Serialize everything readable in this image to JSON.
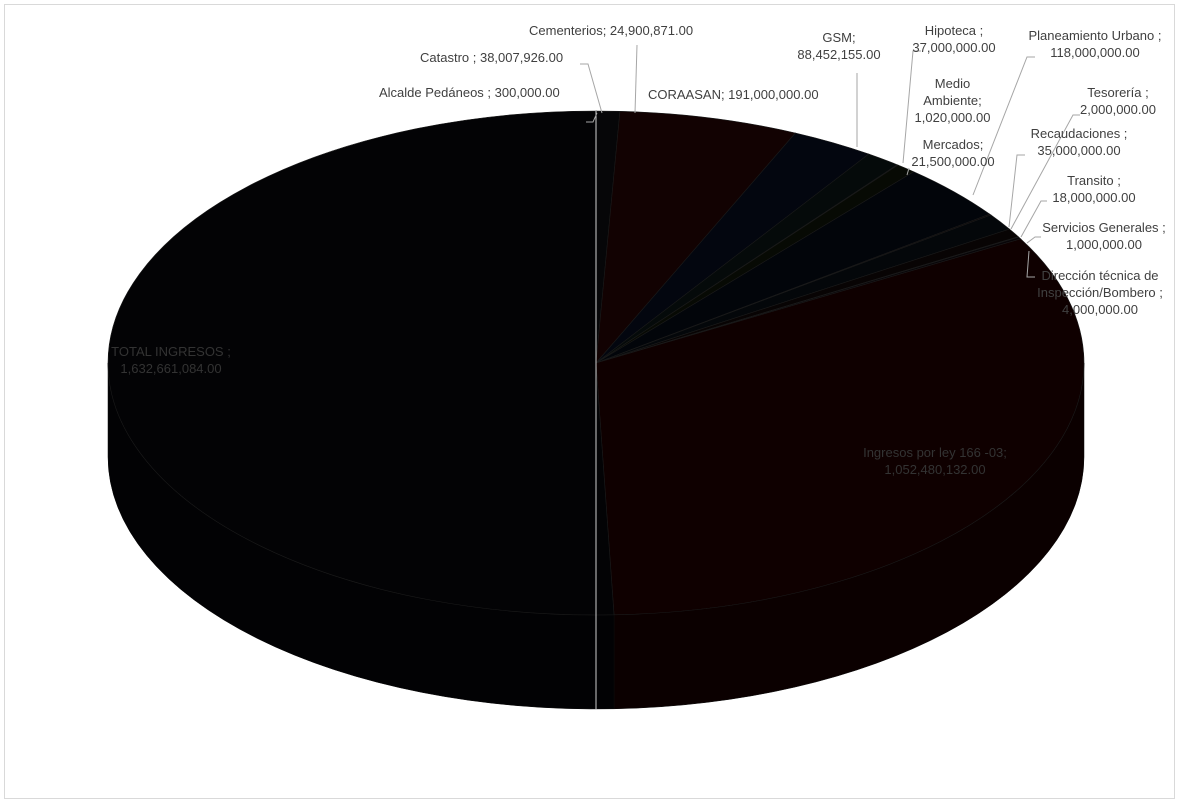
{
  "chart_data": {
    "type": "pie",
    "style": "3d",
    "slices": [
      {
        "name": "Alcalde Pedáneos",
        "value": 300000.0,
        "label_text": "Alcalde Pedáneos ; 300,000.00",
        "color": "#050505"
      },
      {
        "name": "Cementerios",
        "value": 24900871.0,
        "label_text": "Cementerios; 24,900,871.00",
        "color": "#060608"
      },
      {
        "name": "CORAASAN",
        "value": 191000000.0,
        "label_text": "CORAASAN; 191,000,000.00",
        "color": "#120202"
      },
      {
        "name": "GSM",
        "value": 88452155.0,
        "label_text": "GSM; 88,452,155.00",
        "color": "#03060f"
      },
      {
        "name": "Hipoteca",
        "value": 37000000.0,
        "label_text": "Hipoteca ; 37,000,000.00",
        "color": "#050a0a"
      },
      {
        "name": "Medio Ambiente",
        "value": 1020000.0,
        "label_text": "Medio Ambiente; 1,020,000.00",
        "color": "#080808"
      },
      {
        "name": "Mercados",
        "value": 21500000.0,
        "label_text": "Mercados; 21,500,000.00",
        "color": "#070a04"
      },
      {
        "name": "Planeamiento Urbano",
        "value": 118000000.0,
        "label_text": "Planeamiento Urbano ; 118,000,000.00",
        "color": "#02050a"
      },
      {
        "name": "Tesorería",
        "value": 2000000.0,
        "label_text": "Tesorería ; 2,000,000.00",
        "color": "#0a0404"
      },
      {
        "name": "Recaudaciones",
        "value": 35000000.0,
        "label_text": "Recaudaciones ; 35,000,000.00",
        "color": "#04070a"
      },
      {
        "name": "Transito",
        "value": 18000000.0,
        "label_text": "Transito ; 18,000,000.00",
        "color": "#080404"
      },
      {
        "name": "Servicios Generales",
        "value": 1000000.0,
        "label_text": "Servicios Generales ; 1,000,000.00",
        "color": "#050808"
      },
      {
        "name": "Dirección técnica de Inspección/Bombero",
        "value": 4000000.0,
        "label_text": "Dirección técnica de Inspección/Bombero ; 4,000,000.00",
        "color": "#080508"
      },
      {
        "name": "Ingresos por ley 166 -03",
        "value": 1052480132.0,
        "label_text": "Ingresos por ley 166 -03; 1,052,480,132.00",
        "color": "#0f0000"
      },
      {
        "name": "TOTAL INGRESOS",
        "value": 1632661084.0,
        "label_text": "TOTAL INGRESOS ; 1,632,661,084.00",
        "color": "#030305"
      }
    ],
    "legend": "none",
    "start_position": "12 o'clock",
    "direction": "clockwise",
    "label_color": "#404040"
  },
  "labels": {
    "alcalde": "Alcalde Pedáneos ; 300,000.00",
    "catastro": "Catastro ; 38,007,926.00",
    "cementerios": "Cementerios; 24,900,871.00",
    "coraasan": "CORAASAN; 191,000,000.00",
    "gsm_1": "GSM;",
    "gsm_2": "88,452,155.00",
    "hipoteca_1": "Hipoteca ;",
    "hipoteca_2": "37,000,000.00",
    "medio_1": "Medio",
    "medio_2": "Ambiente;",
    "medio_3": "1,020,000.00",
    "mercados_1": "Mercados;",
    "mercados_2": "21,500,000.00",
    "planeamiento_1": "Planeamiento Urbano ;",
    "planeamiento_2": "118,000,000.00",
    "tesoreria_1": "Tesorería ;",
    "tesoreria_2": "2,000,000.00",
    "recaudaciones_1": "Recaudaciones ;",
    "recaudaciones_2": "35,000,000.00",
    "transito_1": "Transito ;",
    "transito_2": "18,000,000.00",
    "servicios_1": "Servicios Generales ;",
    "servicios_2": "1,000,000.00",
    "direccion_1": "Dirección técnica de",
    "direccion_2": "Inspección/Bombero ;",
    "direccion_3": "4,000,000.00",
    "ingresos_1": "Ingresos por ley 166 -03;",
    "ingresos_2": "1,052,480,132.00",
    "total_1": "TOTAL INGRESOS ;",
    "total_2": "1,632,661,084.00"
  }
}
